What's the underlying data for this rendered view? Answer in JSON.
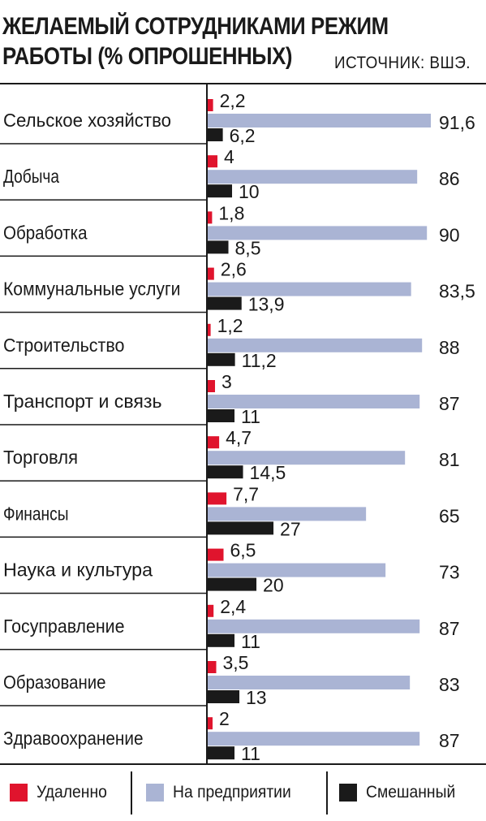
{
  "header": {
    "title_line1": "ЖЕЛАЕМЫЙ СОТРУДНИКАМИ РЕЖИМ",
    "title_line2": "РАБОТЫ (% ОПРОШЕННЫХ)",
    "source": "ИСТОЧНИК: ВШЭ."
  },
  "legend": {
    "remote": "Удаленно",
    "office": "На предприятии",
    "mixed": "Смешанный"
  },
  "chart_data": {
    "type": "bar",
    "orientation": "horizontal",
    "title": "ЖЕЛАЕМЫЙ СОТРУДНИКАМИ РЕЖИМ РАБОТЫ (% ОПРОШЕННЫХ)",
    "xlim": [
      0,
      100
    ],
    "grid": false,
    "legend_placement": "bottom",
    "decimal_separator": ",",
    "categories": [
      "Сельское хозяйство",
      "Добыча",
      "Обработка",
      "Коммунальные услуги",
      "Строительство",
      "Транспорт и связь",
      "Торговля",
      "Финансы",
      "Наука и культура",
      "Госуправление",
      "Образование",
      "Здравоохранение"
    ],
    "series": [
      {
        "name": "Удаленно",
        "color": "#e0142d",
        "values": [
          2.2,
          4,
          1.8,
          2.6,
          1.2,
          3,
          4.7,
          7.7,
          6.5,
          2.4,
          3.5,
          2
        ]
      },
      {
        "name": "На предприятии",
        "color": "#aab4d4",
        "values": [
          91.6,
          86,
          90,
          83.5,
          88,
          87,
          81,
          65,
          73,
          87,
          83,
          87
        ]
      },
      {
        "name": "Смешанный",
        "color": "#1a1a1a",
        "values": [
          6.2,
          10,
          8.5,
          13.9,
          11.2,
          11,
          14.5,
          27,
          20,
          11,
          13,
          11
        ]
      }
    ]
  }
}
